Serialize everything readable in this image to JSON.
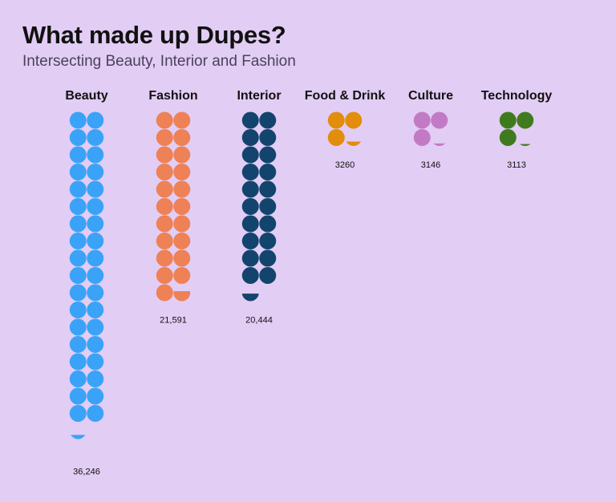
{
  "chart_data": {
    "type": "waffle",
    "title": "What made up Dupes?",
    "subtitle": "Intersecting Beauty, Interior and Fashion",
    "categories": [
      "Beauty",
      "Fashion",
      "Interior",
      "Food & Drink",
      "Culture",
      "Technology"
    ],
    "values": [
      36246,
      21591,
      20444,
      3260,
      3146,
      3113
    ],
    "value_labels": [
      "36,246",
      "21,591",
      "20,444",
      "3260",
      "3146",
      "3113"
    ],
    "units_per_dot": 1000,
    "colors": [
      "#3aa3f7",
      "#ee8155",
      "#13446d",
      "#e38d0d",
      "#c37ac4",
      "#3f7b1e"
    ]
  }
}
